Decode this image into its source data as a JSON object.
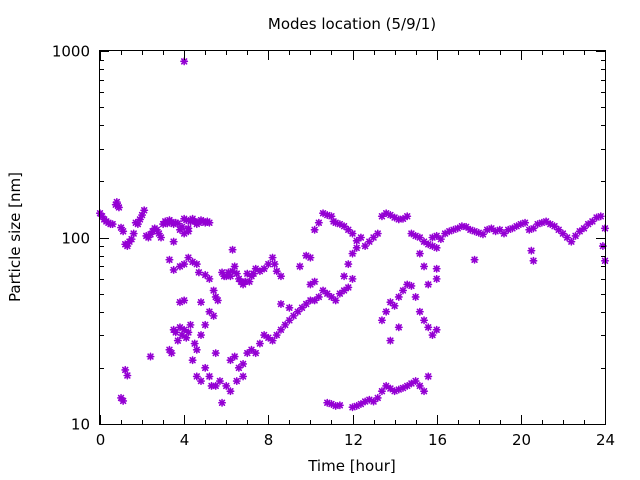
{
  "chart_data": {
    "type": "scatter",
    "title": "Modes location (5/9/1)",
    "xlabel": "Time [hour]",
    "ylabel": "Particle size [nm]",
    "xlim": [
      0,
      24
    ],
    "ylim": [
      10,
      1000
    ],
    "yscale": "log",
    "grid": false,
    "x_ticks": [
      0,
      4,
      8,
      12,
      16,
      20,
      24
    ],
    "x_tick_labels": [
      "0",
      "4",
      "8",
      "12",
      "16",
      "20",
      "24"
    ],
    "y_ticks": [
      10,
      100,
      1000
    ],
    "y_tick_labels": [
      "10",
      "100",
      "1000"
    ],
    "marker_color": "#9400d3",
    "marker": "asterisk",
    "series": [
      {
        "points": [
          [
            0.0,
            135
          ],
          [
            0.1,
            130
          ],
          [
            0.2,
            125
          ],
          [
            0.3,
            122
          ],
          [
            0.4,
            120
          ],
          [
            0.5,
            118
          ],
          [
            0.6,
            118
          ],
          [
            0.75,
            150
          ],
          [
            0.8,
            155
          ],
          [
            0.85,
            148
          ],
          [
            0.9,
            145
          ],
          [
            1.0,
            113
          ],
          [
            1.1,
            108
          ],
          [
            1.2,
            92
          ],
          [
            1.3,
            90
          ],
          [
            1.4,
            95
          ],
          [
            1.5,
            98
          ],
          [
            1.6,
            105
          ],
          [
            1.7,
            120
          ],
          [
            1.8,
            118
          ],
          [
            1.9,
            125
          ],
          [
            2.0,
            132
          ],
          [
            2.1,
            140
          ],
          [
            2.2,
            102
          ],
          [
            2.3,
            100
          ],
          [
            2.4,
            104
          ],
          [
            2.5,
            108
          ],
          [
            2.6,
            112
          ],
          [
            2.7,
            110
          ],
          [
            2.8,
            105
          ],
          [
            2.9,
            100
          ],
          [
            3.0,
            118
          ],
          [
            3.1,
            122
          ],
          [
            3.2,
            119
          ],
          [
            3.3,
            124
          ],
          [
            3.4,
            121
          ],
          [
            3.5,
            118
          ],
          [
            3.6,
            120
          ],
          [
            3.7,
            119
          ],
          [
            3.8,
            110
          ],
          [
            3.9,
            114
          ],
          [
            4.0,
            126
          ],
          [
            4.1,
            124
          ],
          [
            4.2,
            112
          ],
          [
            4.3,
            122
          ],
          [
            4.4,
            126
          ],
          [
            4.5,
            122
          ],
          [
            4.6,
            118
          ],
          [
            4.7,
            120
          ],
          [
            4.8,
            124
          ],
          [
            4.9,
            122
          ],
          [
            5.0,
            120
          ],
          [
            5.1,
            122
          ],
          [
            5.2,
            120
          ],
          [
            3.5,
            95
          ],
          [
            4.0,
            105
          ],
          [
            4.2,
            108
          ],
          [
            4.0,
            880
          ],
          [
            1.0,
            13.8
          ],
          [
            1.1,
            13.3
          ],
          [
            1.2,
            19.5
          ],
          [
            1.3,
            18.2
          ],
          [
            2.4,
            23
          ],
          [
            3.3,
            76
          ],
          [
            3.5,
            67
          ],
          [
            3.8,
            70
          ],
          [
            4.0,
            72
          ],
          [
            4.2,
            78
          ],
          [
            4.4,
            74
          ],
          [
            4.6,
            72
          ],
          [
            4.7,
            65
          ],
          [
            4.8,
            45
          ],
          [
            5.0,
            63
          ],
          [
            5.2,
            60
          ],
          [
            5.4,
            52
          ],
          [
            5.5,
            48
          ],
          [
            5.6,
            46
          ],
          [
            5.8,
            65
          ],
          [
            5.9,
            62
          ],
          [
            6.0,
            62
          ],
          [
            6.1,
            65
          ],
          [
            6.2,
            62
          ],
          [
            6.3,
            66
          ],
          [
            6.4,
            70
          ],
          [
            6.5,
            64
          ],
          [
            6.6,
            60
          ],
          [
            6.7,
            58
          ],
          [
            6.8,
            56
          ],
          [
            6.9,
            58
          ],
          [
            7.0,
            64
          ],
          [
            7.1,
            58
          ],
          [
            7.2,
            62
          ],
          [
            7.3,
            64
          ],
          [
            7.4,
            68
          ],
          [
            7.6,
            66
          ],
          [
            7.8,
            68
          ],
          [
            8.0,
            72
          ],
          [
            8.2,
            78
          ],
          [
            8.3,
            72
          ],
          [
            8.4,
            66
          ],
          [
            8.6,
            62
          ],
          [
            6.3,
            86
          ],
          [
            3.3,
            25
          ],
          [
            3.4,
            24
          ],
          [
            3.5,
            32
          ],
          [
            3.6,
            31
          ],
          [
            3.7,
            28
          ],
          [
            3.8,
            33
          ],
          [
            3.9,
            30
          ],
          [
            4.0,
            32
          ],
          [
            4.1,
            29
          ],
          [
            4.2,
            31
          ],
          [
            4.3,
            34
          ],
          [
            4.4,
            22
          ],
          [
            4.5,
            27
          ],
          [
            4.6,
            25
          ],
          [
            4.8,
            30
          ],
          [
            5.0,
            34
          ],
          [
            5.2,
            40
          ],
          [
            5.4,
            38
          ],
          [
            5.5,
            24
          ],
          [
            4.6,
            18
          ],
          [
            4.8,
            17
          ],
          [
            5.0,
            20
          ],
          [
            5.2,
            18
          ],
          [
            5.5,
            16
          ],
          [
            5.7,
            17
          ],
          [
            5.8,
            13
          ],
          [
            6.0,
            16
          ],
          [
            6.2,
            22
          ],
          [
            6.4,
            23
          ],
          [
            6.6,
            20
          ],
          [
            6.8,
            21
          ],
          [
            7.0,
            24
          ],
          [
            7.2,
            25
          ],
          [
            7.4,
            24
          ],
          [
            7.6,
            27
          ],
          [
            7.8,
            30
          ],
          [
            8.0,
            29
          ],
          [
            8.2,
            28
          ],
          [
            8.4,
            30
          ],
          [
            8.6,
            32
          ],
          [
            8.8,
            34
          ],
          [
            9.0,
            36
          ],
          [
            9.2,
            38
          ],
          [
            9.4,
            40
          ],
          [
            9.6,
            42
          ],
          [
            9.8,
            44
          ],
          [
            10.0,
            46
          ],
          [
            10.2,
            46
          ],
          [
            10.4,
            48
          ],
          [
            10.6,
            52
          ],
          [
            10.8,
            50
          ],
          [
            11.0,
            48
          ],
          [
            11.2,
            46
          ],
          [
            11.4,
            50
          ],
          [
            11.6,
            52
          ],
          [
            11.8,
            54
          ],
          [
            12.0,
            60
          ],
          [
            8.6,
            44
          ],
          [
            9.0,
            42
          ],
          [
            10.0,
            56
          ],
          [
            10.2,
            58
          ],
          [
            3.8,
            45
          ],
          [
            4.0,
            46
          ],
          [
            5.3,
            16
          ],
          [
            6.2,
            15
          ],
          [
            6.5,
            17
          ],
          [
            6.8,
            18
          ],
          [
            9.5,
            70
          ],
          [
            9.8,
            80
          ],
          [
            10.0,
            78
          ],
          [
            10.2,
            110
          ],
          [
            10.4,
            120
          ],
          [
            10.6,
            135
          ],
          [
            10.8,
            132
          ],
          [
            11.0,
            130
          ],
          [
            11.1,
            122
          ],
          [
            11.2,
            120
          ],
          [
            11.4,
            118
          ],
          [
            11.6,
            115
          ],
          [
            11.8,
            110
          ],
          [
            12.0,
            105
          ],
          [
            12.2,
            96
          ],
          [
            12.4,
            100
          ],
          [
            12.6,
            90
          ],
          [
            12.8,
            95
          ],
          [
            13.0,
            100
          ],
          [
            13.2,
            105
          ],
          [
            11.6,
            62
          ],
          [
            11.8,
            72
          ],
          [
            12.0,
            82
          ],
          [
            12.2,
            88
          ],
          [
            10.8,
            13
          ],
          [
            11.0,
            12.8
          ],
          [
            11.2,
            12.5
          ],
          [
            11.4,
            12.6
          ],
          [
            12.0,
            12.3
          ],
          [
            12.2,
            12.5
          ],
          [
            12.4,
            12.8
          ],
          [
            12.6,
            13.2
          ],
          [
            12.8,
            13.5
          ],
          [
            13.0,
            13.2
          ],
          [
            13.2,
            13.8
          ],
          [
            13.4,
            15
          ],
          [
            13.6,
            16
          ],
          [
            13.8,
            15.5
          ],
          [
            14.0,
            15
          ],
          [
            14.2,
            15.3
          ],
          [
            14.4,
            15.6
          ],
          [
            14.6,
            16
          ],
          [
            14.8,
            16.5
          ],
          [
            15.0,
            17
          ],
          [
            15.2,
            16
          ],
          [
            15.4,
            15
          ],
          [
            15.6,
            18
          ],
          [
            13.4,
            130
          ],
          [
            13.6,
            135
          ],
          [
            13.8,
            132
          ],
          [
            14.0,
            128
          ],
          [
            14.2,
            125
          ],
          [
            14.4,
            126
          ],
          [
            14.6,
            130
          ],
          [
            14.8,
            105
          ],
          [
            15.0,
            102
          ],
          [
            15.2,
            100
          ],
          [
            15.4,
            95
          ],
          [
            15.6,
            92
          ],
          [
            15.8,
            90
          ],
          [
            16.0,
            88
          ],
          [
            13.4,
            36
          ],
          [
            13.6,
            40
          ],
          [
            13.8,
            45
          ],
          [
            14.0,
            43
          ],
          [
            14.2,
            48
          ],
          [
            14.4,
            52
          ],
          [
            14.6,
            56
          ],
          [
            14.8,
            55
          ],
          [
            15.0,
            48
          ],
          [
            15.2,
            40
          ],
          [
            15.4,
            36
          ],
          [
            15.6,
            33
          ],
          [
            15.8,
            30
          ],
          [
            16.0,
            32
          ],
          [
            13.8,
            28
          ],
          [
            14.2,
            33
          ],
          [
            15.2,
            82
          ],
          [
            15.4,
            70
          ],
          [
            15.6,
            56
          ],
          [
            16.0,
            60
          ],
          [
            15.8,
            100
          ],
          [
            16.0,
            102
          ],
          [
            16.2,
            98
          ],
          [
            16.4,
            105
          ],
          [
            16.6,
            108
          ],
          [
            16.8,
            110
          ],
          [
            17.0,
            112
          ],
          [
            17.2,
            115
          ],
          [
            17.4,
            114
          ],
          [
            17.6,
            110
          ],
          [
            17.8,
            108
          ],
          [
            18.0,
            106
          ],
          [
            18.2,
            104
          ],
          [
            18.4,
            110
          ],
          [
            18.6,
            112
          ],
          [
            18.8,
            108
          ],
          [
            19.0,
            110
          ],
          [
            19.2,
            105
          ],
          [
            19.4,
            110
          ],
          [
            19.6,
            112
          ],
          [
            19.8,
            115
          ],
          [
            20.0,
            118
          ],
          [
            20.2,
            120
          ],
          [
            20.4,
            110
          ],
          [
            20.6,
            112
          ],
          [
            20.8,
            118
          ],
          [
            21.0,
            120
          ],
          [
            21.2,
            122
          ],
          [
            21.4,
            118
          ],
          [
            21.6,
            115
          ],
          [
            21.8,
            110
          ],
          [
            22.0,
            105
          ],
          [
            22.2,
            100
          ],
          [
            22.4,
            95
          ],
          [
            22.6,
            102
          ],
          [
            22.8,
            108
          ],
          [
            23.0,
            112
          ],
          [
            23.2,
            118
          ],
          [
            23.4,
            122
          ],
          [
            23.6,
            128
          ],
          [
            23.8,
            130
          ],
          [
            24.0,
            112
          ],
          [
            23.9,
            90
          ],
          [
            24.0,
            75
          ],
          [
            20.5,
            85
          ],
          [
            20.6,
            75
          ],
          [
            17.8,
            76
          ],
          [
            16.0,
            68
          ]
        ]
      }
    ]
  }
}
